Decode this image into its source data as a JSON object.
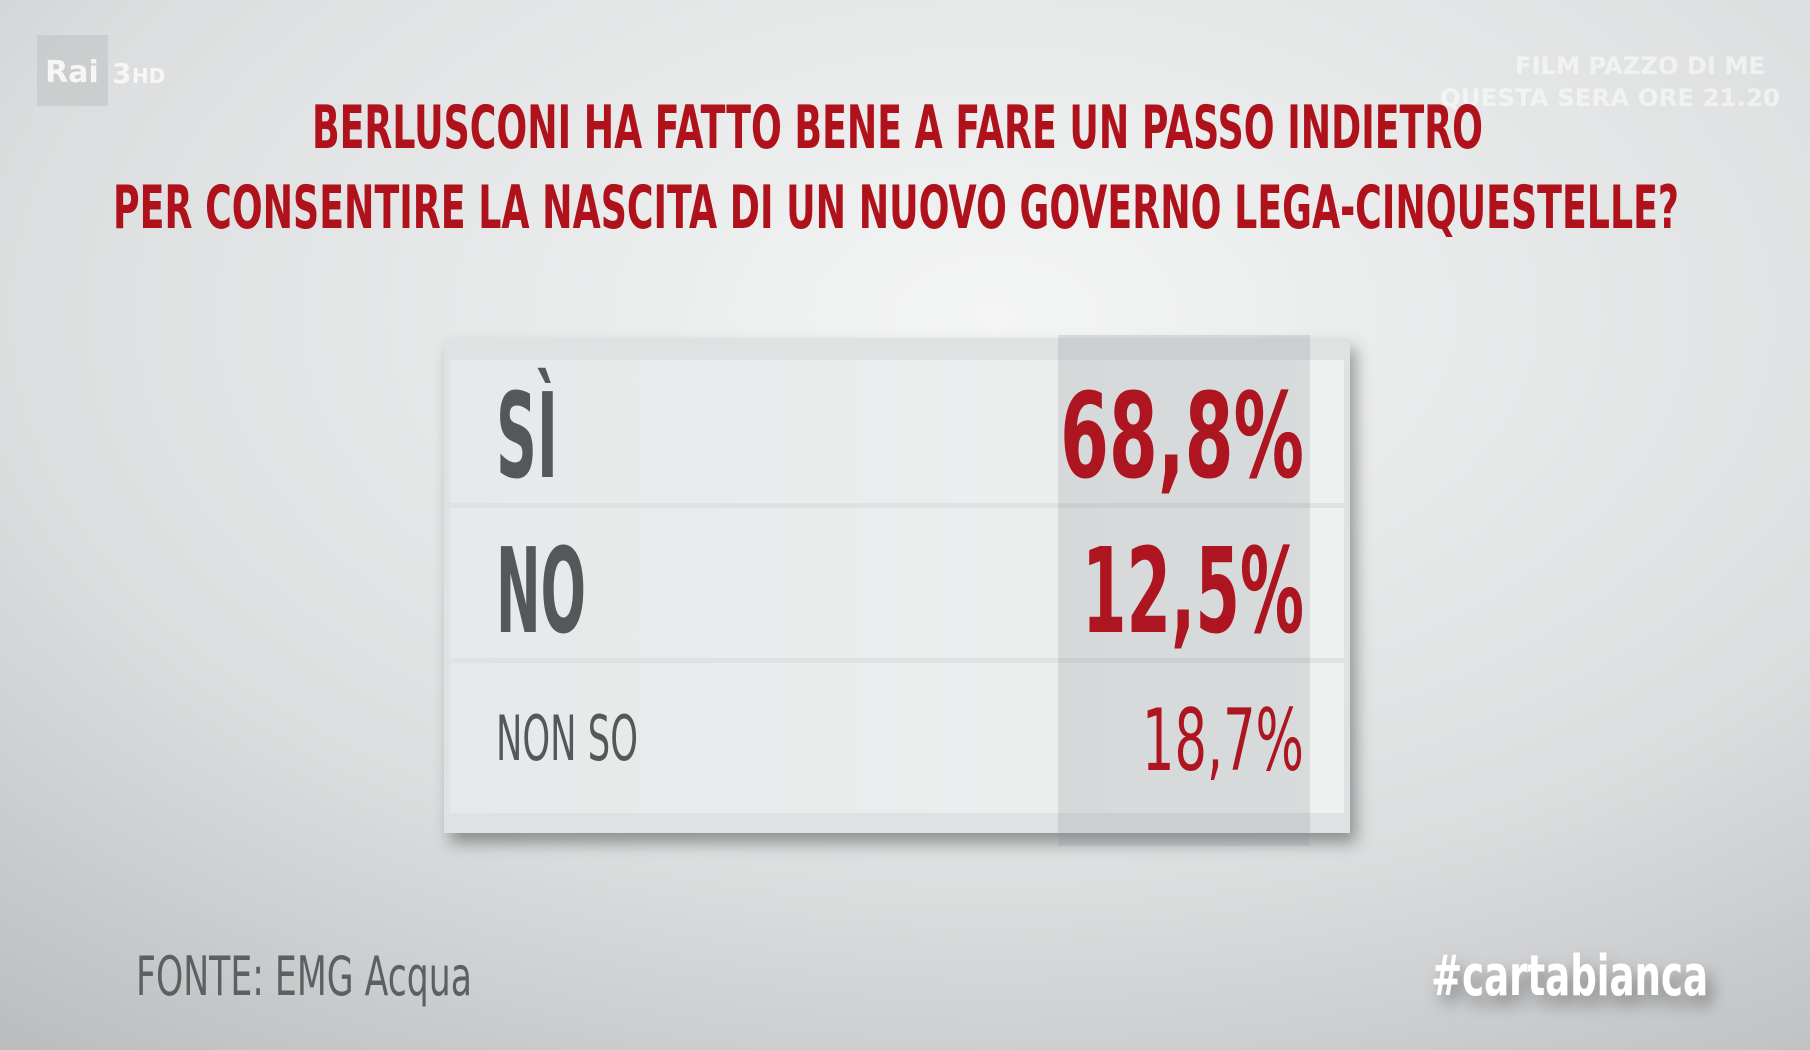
{
  "logo": {
    "brand": "Rai",
    "channel": "3",
    "quality": "HD"
  },
  "promo": {
    "line1": "FILM PAZZO DI ME",
    "line2": "QUESTA SERA ORE 21.20"
  },
  "header": {
    "title": [
      "BERLUSCONI HA FATTO BENE A FARE UN PASSO INDIETRO",
      "PER CONSENTIRE LA NASCITA DI UN NUOVO GOVERNO LEGA-CINQUESTELLE?"
    ]
  },
  "table": {
    "rows": [
      [
        "SÌ",
        "68,8%"
      ],
      [
        "NO",
        "12,5%"
      ],
      [
        "NON SO",
        "18,7%"
      ]
    ]
  },
  "source": "FONTE: EMG Acqua",
  "hashtag": "#cartabianca"
}
